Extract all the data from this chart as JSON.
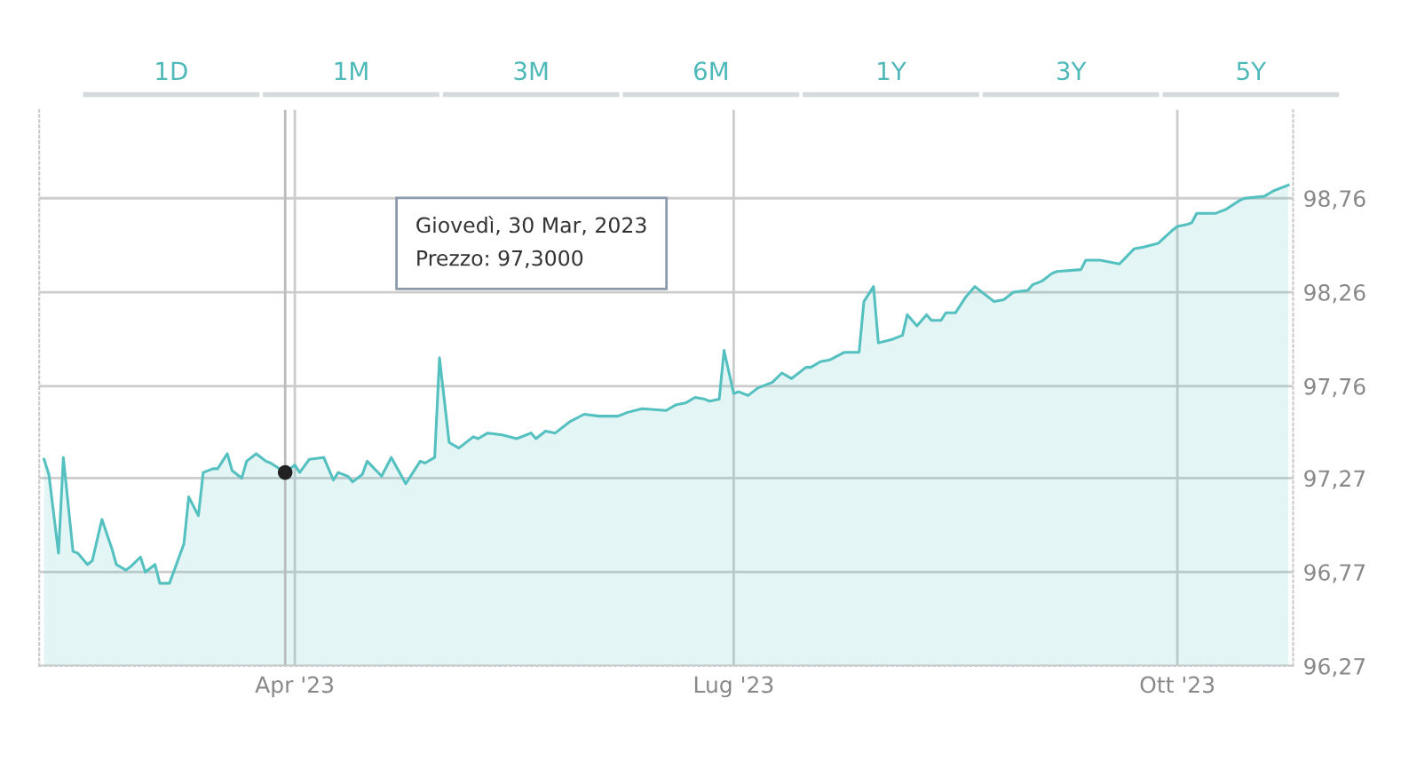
{
  "chart_data": {
    "type": "area",
    "annotations": [
      "1D",
      "1M",
      "3M",
      "6M",
      "1Y",
      "3Y",
      "5Y",
      "Giovedì, 30 Mar, 2023\nPrezzo: 97,3000"
    ],
    "x": [
      "2023-02-08",
      "2023-02-09",
      "2023-02-11",
      "2023-02-12",
      "2023-02-14",
      "2023-02-15",
      "2023-02-17",
      "2023-02-18",
      "2023-02-20",
      "2023-02-22",
      "2023-02-23",
      "2023-02-25",
      "2023-02-26",
      "2023-02-28",
      "2023-03-01",
      "2023-03-03",
      "2023-03-04",
      "2023-03-06",
      "2023-03-09",
      "2023-03-10",
      "2023-03-12",
      "2023-03-13",
      "2023-03-15",
      "2023-03-16",
      "2023-03-18",
      "2023-03-19",
      "2023-03-21",
      "2023-03-22",
      "2023-03-24",
      "2023-03-26",
      "2023-03-27",
      "2023-03-30",
      "2023-04-01",
      "2023-04-02",
      "2023-04-04",
      "2023-04-07",
      "2023-04-09",
      "2023-04-10",
      "2023-04-12",
      "2023-04-13",
      "2023-04-15",
      "2023-04-16",
      "2023-04-19",
      "2023-04-21",
      "2023-04-24",
      "2023-04-27",
      "2023-04-28",
      "2023-04-30",
      "2023-05-01",
      "2023-05-03",
      "2023-05-05",
      "2023-05-06",
      "2023-05-08",
      "2023-05-09",
      "2023-05-11",
      "2023-05-14",
      "2023-05-17",
      "2023-05-20",
      "2023-05-21",
      "2023-05-23",
      "2023-05-25",
      "2023-05-28",
      "2023-05-31",
      "2023-06-03",
      "2023-06-07",
      "2023-06-09",
      "2023-06-12",
      "2023-06-17",
      "2023-06-19",
      "2023-06-21",
      "2023-06-23",
      "2023-06-25",
      "2023-06-26",
      "2023-06-28",
      "2023-06-29",
      "2023-07-01",
      "2023-07-02",
      "2023-07-04",
      "2023-07-06",
      "2023-07-09",
      "2023-07-11",
      "2023-07-13",
      "2023-07-16",
      "2023-07-17",
      "2023-07-19",
      "2023-07-21",
      "2023-07-24",
      "2023-07-27",
      "2023-07-28",
      "2023-07-30",
      "2023-07-31",
      "2023-08-03",
      "2023-08-05",
      "2023-08-06",
      "2023-08-08",
      "2023-08-10",
      "2023-08-11",
      "2023-08-13",
      "2023-08-14",
      "2023-08-16",
      "2023-08-18",
      "2023-08-20",
      "2023-08-24",
      "2023-08-26",
      "2023-08-28",
      "2023-08-31",
      "2023-09-01",
      "2023-09-03",
      "2023-09-05",
      "2023-09-06",
      "2023-09-11",
      "2023-09-12",
      "2023-09-15",
      "2023-09-19",
      "2023-09-22",
      "2023-09-24",
      "2023-09-27",
      "2023-09-30",
      "2023-10-01",
      "2023-10-03",
      "2023-10-04",
      "2023-10-05",
      "2023-10-09",
      "2023-10-11",
      "2023-10-14",
      "2023-10-15",
      "2023-10-19",
      "2023-10-21",
      "2023-10-24"
    ],
    "series": [
      {
        "color": "#55c0c0",
        "values": [
          97.37,
          97.29,
          96.87,
          97.38,
          96.88,
          96.87,
          96.81,
          96.83,
          97.05,
          96.9,
          96.81,
          96.78,
          96.8,
          96.85,
          96.77,
          96.81,
          96.71,
          96.71,
          96.92,
          97.17,
          97.07,
          97.3,
          97.32,
          97.32,
          97.4,
          97.31,
          97.27,
          97.36,
          97.4,
          97.36,
          97.35,
          97.3,
          97.34,
          97.3,
          97.37,
          97.38,
          97.26,
          97.3,
          97.28,
          97.25,
          97.29,
          97.36,
          97.28,
          97.38,
          97.24,
          97.36,
          97.35,
          97.38,
          97.91,
          97.46,
          97.43,
          97.45,
          97.49,
          97.48,
          97.51,
          97.5,
          97.48,
          97.51,
          97.48,
          97.52,
          97.51,
          97.57,
          97.61,
          97.6,
          97.6,
          97.62,
          97.64,
          97.63,
          97.66,
          97.67,
          97.7,
          97.69,
          97.68,
          97.69,
          97.95,
          97.72,
          97.73,
          97.71,
          97.75,
          97.78,
          97.83,
          97.8,
          97.86,
          97.86,
          97.89,
          97.9,
          97.94,
          97.94,
          98.21,
          98.29,
          97.99,
          98.01,
          98.03,
          98.14,
          98.08,
          98.14,
          98.11,
          98.11,
          98.15,
          98.15,
          98.23,
          98.29,
          98.21,
          98.22,
          98.26,
          98.27,
          98.3,
          98.32,
          98.36,
          98.37,
          98.38,
          98.43,
          98.43,
          98.41,
          98.49,
          98.5,
          98.52,
          98.59,
          98.61,
          98.62,
          98.63,
          98.68,
          98.68,
          98.7,
          98.75,
          98.76,
          98.77,
          98.8,
          98.83
        ]
      }
    ],
    "xlim": [
      "2023-02-07",
      "2023-10-25"
    ],
    "xticks": [
      {
        "value": "2023-04-01",
        "label": "Apr '23"
      },
      {
        "value": "2023-07-01",
        "label": "Lug '23"
      },
      {
        "value": "2023-10-01",
        "label": "Ott '23"
      }
    ],
    "ylim": [
      96.27,
      99.23
    ],
    "yticks": [
      {
        "value": 96.27,
        "label": "96,27"
      },
      {
        "value": 96.77,
        "label": "96,77"
      },
      {
        "value": 97.27,
        "label": "97,27"
      },
      {
        "value": 97.76,
        "label": "97,76"
      },
      {
        "value": 98.26,
        "label": "98,26"
      },
      {
        "value": 98.76,
        "label": "98,76"
      }
    ],
    "ref_lines": [
      {
        "axis": "x",
        "value": "2023-03-30",
        "color": "#bbbbbb"
      }
    ],
    "grid": true,
    "legend": false,
    "marker": "none",
    "line_style": "solid"
  }
}
